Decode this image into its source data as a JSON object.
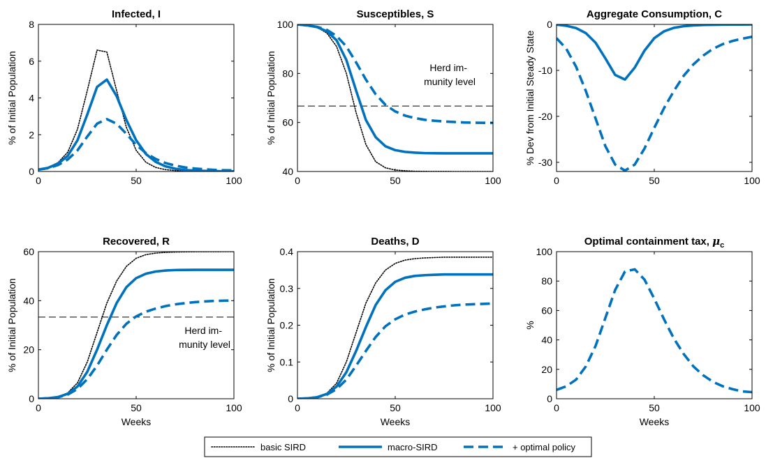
{
  "colors": {
    "primary": "#0072bd",
    "basic": "#000000",
    "herd_line": "#000000"
  },
  "legend": {
    "placement": "bottom-center",
    "entries": [
      {
        "label": "basic SIRD",
        "style": "dotted",
        "color": "#000000"
      },
      {
        "label": "macro-SIRD",
        "style": "solid",
        "color": "#0072bd"
      },
      {
        "label": "+ optimal policy",
        "style": "dashed",
        "color": "#0072bd"
      }
    ]
  },
  "chart_data": [
    {
      "type": "line",
      "title": "Infected, I",
      "xlabel": "",
      "ylabel": "% of Initial Population",
      "xlim": [
        0,
        100
      ],
      "ylim": [
        0,
        8
      ],
      "xticks": [
        0,
        50,
        100
      ],
      "yticks": [
        0,
        2,
        4,
        6,
        8
      ],
      "x": [
        0,
        5,
        10,
        15,
        20,
        25,
        30,
        35,
        40,
        45,
        50,
        55,
        60,
        65,
        70,
        75,
        80,
        85,
        90,
        95,
        100
      ],
      "series": [
        {
          "name": "basic SIRD",
          "style": "dotted",
          "values": [
            0.1,
            0.23,
            0.48,
            1.05,
            2.3,
            4.4,
            6.6,
            6.5,
            4.4,
            2.4,
            1.15,
            0.5,
            0.22,
            0.1,
            0.05,
            0.02,
            0.01,
            0.01,
            0.0,
            0.0,
            0.0
          ]
        },
        {
          "name": "macro-SIRD",
          "style": "solid",
          "values": [
            0.1,
            0.2,
            0.42,
            0.85,
            1.7,
            3.1,
            4.6,
            5.0,
            4.1,
            2.8,
            1.7,
            0.95,
            0.52,
            0.28,
            0.15,
            0.08,
            0.05,
            0.03,
            0.02,
            0.01,
            0.01
          ]
        },
        {
          "name": "+ optimal policy",
          "style": "dashed",
          "values": [
            0.1,
            0.18,
            0.35,
            0.65,
            1.15,
            1.9,
            2.6,
            2.85,
            2.6,
            2.05,
            1.45,
            1.0,
            0.68,
            0.46,
            0.32,
            0.22,
            0.16,
            0.12,
            0.09,
            0.07,
            0.06
          ]
        }
      ]
    },
    {
      "type": "line",
      "title": "Susceptibles, S",
      "xlabel": "",
      "ylabel": "% of Initial Population",
      "xlim": [
        0,
        100
      ],
      "ylim": [
        40,
        100
      ],
      "xticks": [
        0,
        50,
        100
      ],
      "yticks": [
        40,
        60,
        80,
        100
      ],
      "annotation": {
        "text_lines": [
          "Herd im-",
          "munity level"
        ],
        "herd_level": 66.7
      },
      "x": [
        0,
        5,
        10,
        15,
        20,
        25,
        30,
        35,
        40,
        45,
        50,
        55,
        60,
        65,
        70,
        75,
        80,
        85,
        90,
        95,
        100
      ],
      "series": [
        {
          "name": "basic SIRD",
          "style": "dotted",
          "values": [
            100,
            99.6,
            98.8,
            96.5,
            91,
            80,
            64,
            51,
            44,
            41.5,
            40.6,
            40.3,
            40.1,
            40.05,
            40.02,
            40.01,
            40.0,
            40.0,
            40.0,
            40.0,
            40.0
          ]
        },
        {
          "name": "macro-SIRD",
          "style": "solid",
          "values": [
            100,
            99.6,
            98.9,
            97.2,
            93.5,
            85.5,
            73,
            61,
            54,
            50.3,
            48.7,
            48.0,
            47.7,
            47.5,
            47.45,
            47.4,
            47.4,
            47.4,
            47.4,
            47.4,
            47.4
          ]
        },
        {
          "name": "+ optimal policy",
          "style": "dashed",
          "values": [
            100,
            99.6,
            99.0,
            97.8,
            95.3,
            91,
            84.5,
            77.5,
            71.5,
            67.2,
            64.5,
            62.8,
            61.8,
            61.1,
            60.7,
            60.4,
            60.2,
            60.0,
            59.9,
            59.85,
            59.8
          ]
        }
      ]
    },
    {
      "type": "line",
      "title": "Aggregate Consumption, C",
      "xlabel": "",
      "ylabel": "% Dev from Initial Steady State",
      "xlim": [
        0,
        100
      ],
      "ylim": [
        -32,
        0
      ],
      "xticks": [
        0,
        50,
        100
      ],
      "yticks": [
        -30,
        -20,
        -10,
        0
      ],
      "x": [
        0,
        5,
        10,
        15,
        20,
        25,
        30,
        35,
        40,
        45,
        50,
        55,
        60,
        65,
        70,
        75,
        80,
        85,
        90,
        95,
        100
      ],
      "series": [
        {
          "name": "macro-SIRD",
          "style": "solid",
          "values": [
            -0.05,
            -0.3,
            -0.8,
            -1.9,
            -4.0,
            -7.4,
            -11.0,
            -12.0,
            -9.4,
            -5.7,
            -3.0,
            -1.5,
            -0.75,
            -0.4,
            -0.22,
            -0.13,
            -0.08,
            -0.05,
            -0.04,
            -0.03,
            -0.02
          ]
        },
        {
          "name": "+ optimal policy",
          "style": "dashed",
          "values": [
            -3.0,
            -5.3,
            -9.2,
            -14.5,
            -20.5,
            -26.5,
            -30.5,
            -31.8,
            -30.5,
            -27.0,
            -22.5,
            -18.2,
            -14.5,
            -11.2,
            -8.7,
            -6.8,
            -5.3,
            -4.3,
            -3.6,
            -3.1,
            -2.7
          ]
        }
      ]
    },
    {
      "type": "line",
      "title": "Recovered, R",
      "xlabel": "Weeks",
      "ylabel": "% of Initial Population",
      "xlim": [
        0,
        100
      ],
      "ylim": [
        0,
        60
      ],
      "xticks": [
        0,
        50,
        100
      ],
      "yticks": [
        0,
        20,
        40,
        60
      ],
      "annotation": {
        "text_lines": [
          "Herd im-",
          "munity level"
        ],
        "herd_level": 33.3
      },
      "x": [
        0,
        5,
        10,
        15,
        20,
        25,
        30,
        35,
        40,
        45,
        50,
        55,
        60,
        65,
        70,
        75,
        80,
        85,
        90,
        95,
        100
      ],
      "series": [
        {
          "name": "basic SIRD",
          "style": "dotted",
          "values": [
            0,
            0.2,
            0.8,
            2.4,
            6.5,
            15,
            27,
            39,
            48,
            54,
            57.3,
            58.8,
            59.4,
            59.7,
            59.85,
            59.92,
            59.96,
            59.98,
            59.99,
            60.0,
            60.0
          ]
        },
        {
          "name": "macro-SIRD",
          "style": "solid",
          "values": [
            0,
            0.2,
            0.7,
            2.0,
            5.0,
            11,
            20,
            30,
            39,
            45.5,
            49.2,
            51.0,
            51.9,
            52.3,
            52.5,
            52.55,
            52.6,
            52.6,
            52.6,
            52.6,
            52.6
          ]
        },
        {
          "name": "+ optimal policy",
          "style": "dashed",
          "values": [
            0,
            0.2,
            0.6,
            1.7,
            4.0,
            8.0,
            13.5,
            20,
            26,
            30.6,
            33.6,
            35.5,
            36.8,
            37.8,
            38.5,
            39.0,
            39.4,
            39.7,
            39.9,
            40.0,
            40.1
          ]
        }
      ]
    },
    {
      "type": "line",
      "title": "Deaths, D",
      "xlabel": "Weeks",
      "ylabel": "% of Initial Population",
      "xlim": [
        0,
        100
      ],
      "ylim": [
        0,
        0.4
      ],
      "xticks": [
        0,
        50,
        100
      ],
      "yticks": [
        0,
        0.1,
        0.2,
        0.3,
        0.4
      ],
      "x": [
        0,
        5,
        10,
        15,
        20,
        25,
        30,
        35,
        40,
        45,
        50,
        55,
        60,
        65,
        70,
        75,
        80,
        85,
        90,
        95,
        100
      ],
      "series": [
        {
          "name": "basic SIRD",
          "style": "dotted",
          "values": [
            0,
            0.001,
            0.005,
            0.015,
            0.042,
            0.1,
            0.18,
            0.26,
            0.315,
            0.35,
            0.368,
            0.377,
            0.381,
            0.383,
            0.384,
            0.385,
            0.385,
            0.385,
            0.385,
            0.385,
            0.385
          ]
        },
        {
          "name": "macro-SIRD",
          "style": "solid",
          "values": [
            0,
            0.001,
            0.004,
            0.013,
            0.033,
            0.072,
            0.13,
            0.195,
            0.255,
            0.295,
            0.318,
            0.329,
            0.334,
            0.336,
            0.337,
            0.338,
            0.338,
            0.338,
            0.338,
            0.338,
            0.338
          ]
        },
        {
          "name": "+ optimal policy",
          "style": "dashed",
          "values": [
            0,
            0.001,
            0.004,
            0.011,
            0.026,
            0.052,
            0.09,
            0.13,
            0.168,
            0.197,
            0.216,
            0.229,
            0.237,
            0.243,
            0.248,
            0.251,
            0.254,
            0.256,
            0.257,
            0.258,
            0.259
          ]
        }
      ]
    },
    {
      "type": "line",
      "title": "Optimal containment tax, ",
      "title_symbol": "μ",
      "title_subscript": "c",
      "xlabel": "Weeks",
      "ylabel": "%",
      "xlim": [
        0,
        100
      ],
      "ylim": [
        0,
        100
      ],
      "xticks": [
        0,
        50,
        100
      ],
      "yticks": [
        0,
        20,
        40,
        60,
        80,
        100
      ],
      "x": [
        0,
        5,
        10,
        15,
        20,
        25,
        30,
        35,
        40,
        45,
        50,
        55,
        60,
        65,
        70,
        75,
        80,
        85,
        90,
        95,
        100
      ],
      "series": [
        {
          "name": "+ optimal policy",
          "style": "dashed",
          "values": [
            6,
            8.5,
            13,
            22,
            36,
            55,
            74,
            86.5,
            88,
            81,
            68,
            54,
            41,
            30.5,
            22,
            16,
            11.5,
            8.5,
            6.5,
            5,
            4.5
          ]
        }
      ]
    }
  ]
}
